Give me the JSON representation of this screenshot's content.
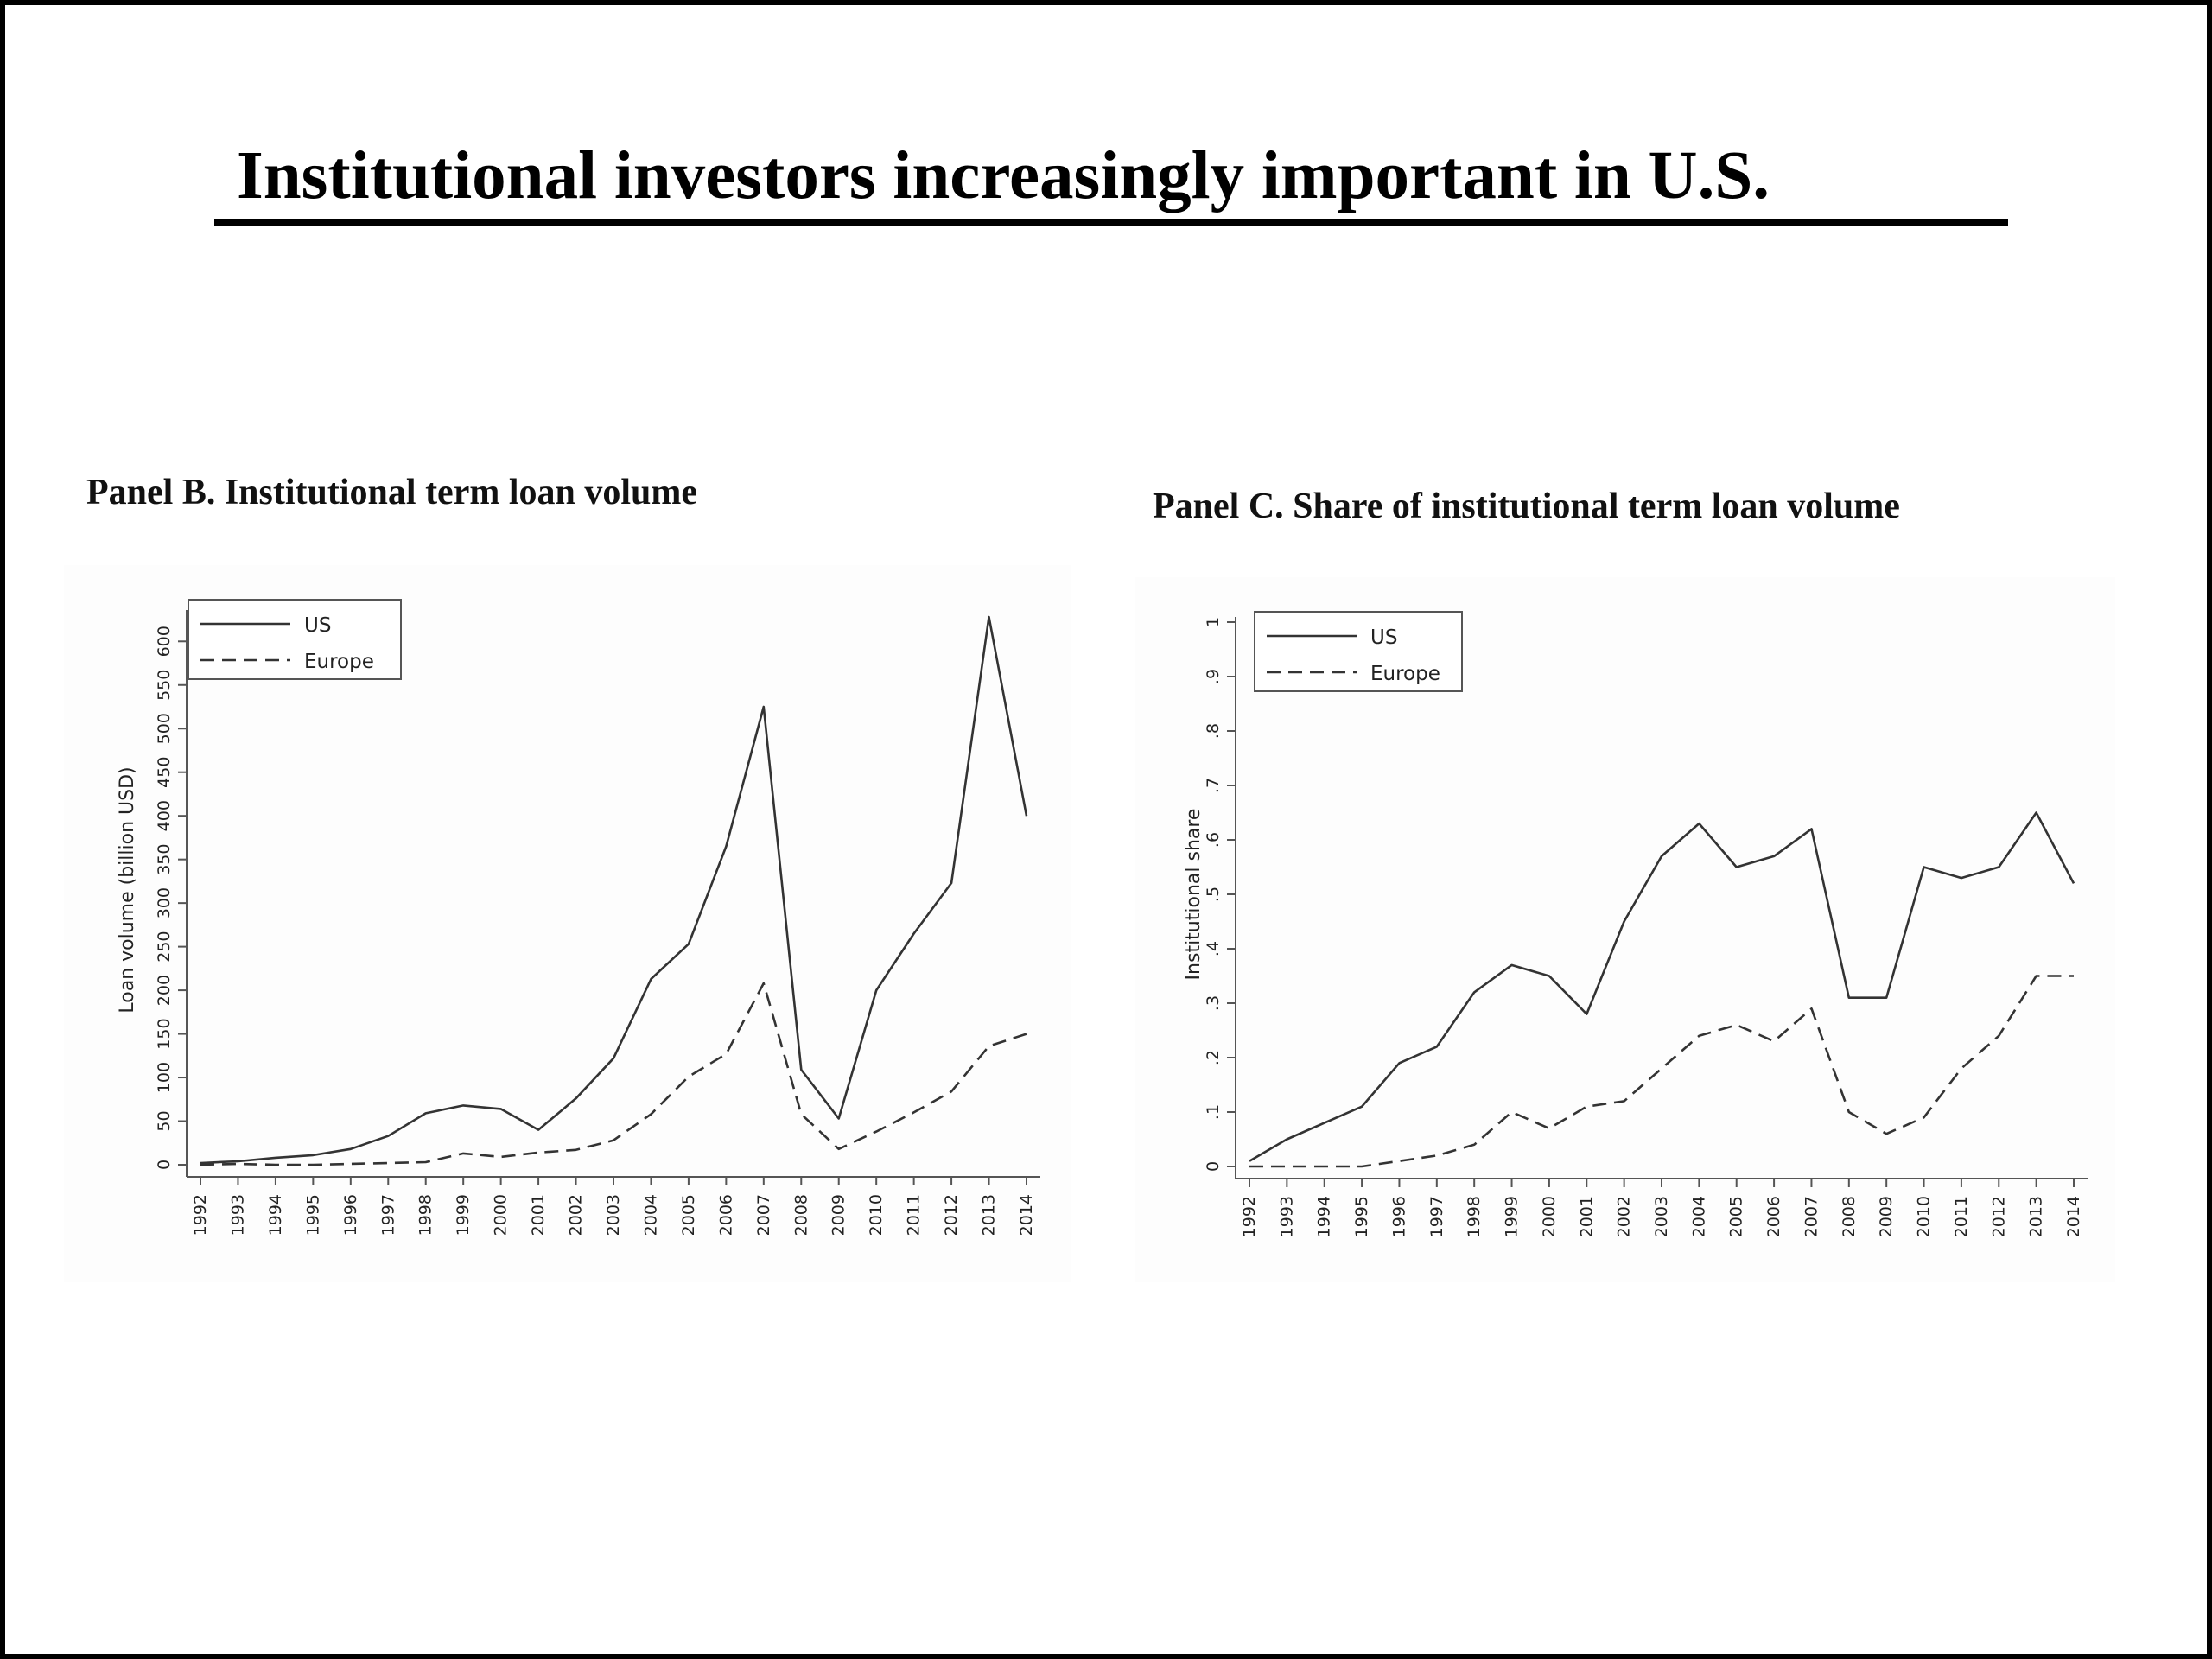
{
  "slide": {
    "title": "Institutional investors increasingly important in U.S."
  },
  "colors": {
    "line": "#333333",
    "axis": "#555555",
    "background": "#ffffff"
  },
  "chart_data": [
    {
      "id": "panel-b",
      "type": "line",
      "title": "Panel B. Institutional term loan volume",
      "xlabel": "",
      "ylabel": "Loan volume (billion USD)",
      "x": [
        1992,
        1993,
        1994,
        1995,
        1996,
        1997,
        1998,
        1999,
        2000,
        2001,
        2002,
        2003,
        2004,
        2005,
        2006,
        2007,
        2008,
        2009,
        2010,
        2011,
        2012,
        2013,
        2014
      ],
      "x_tick_labels": [
        "1992",
        "1993",
        "1994",
        "1995",
        "1996",
        "1997",
        "1998",
        "1999",
        "2000",
        "2001",
        "2002",
        "2003",
        "2004",
        "2005",
        "2006",
        "2007",
        "2008",
        "2009",
        "2010",
        "2011",
        "2012",
        "2013",
        "2014"
      ],
      "y_ticks": [
        0,
        50,
        100,
        150,
        200,
        250,
        300,
        350,
        400,
        450,
        500,
        550,
        600
      ],
      "y_tick_labels": [
        "0",
        "50",
        "100",
        "150",
        "200",
        "250",
        "300",
        "350",
        "400",
        "450",
        "500",
        "550",
        "600"
      ],
      "ylim": [
        0,
        630
      ],
      "grid": false,
      "legend": "top-left",
      "series": [
        {
          "name": "US",
          "style": "solid",
          "values": [
            2,
            4,
            8,
            11,
            18,
            33,
            59,
            68,
            64,
            40,
            76,
            122,
            213,
            253,
            365,
            525,
            109,
            53,
            200,
            265,
            323,
            628,
            400
          ]
        },
        {
          "name": "Europe",
          "style": "dashed",
          "values": [
            0,
            1,
            0,
            0,
            1,
            2,
            3,
            13,
            9,
            14,
            17,
            28,
            58,
            101,
            127,
            208,
            58,
            18,
            38,
            60,
            84,
            136,
            150
          ]
        }
      ]
    },
    {
      "id": "panel-c",
      "type": "line",
      "title": "Panel C. Share of institutional term loan volume",
      "xlabel": "",
      "ylabel": "Institutional share",
      "x": [
        1992,
        1993,
        1994,
        1995,
        1996,
        1997,
        1998,
        1999,
        2000,
        2001,
        2002,
        2003,
        2004,
        2005,
        2006,
        2007,
        2008,
        2009,
        2010,
        2011,
        2012,
        2013,
        2014
      ],
      "x_tick_labels": [
        "1992",
        "1993",
        "1994",
        "1995",
        "1996",
        "1997",
        "1998",
        "1999",
        "2000",
        "2001",
        "2002",
        "2003",
        "2004",
        "2005",
        "2006",
        "2007",
        "2008",
        "2009",
        "2010",
        "2011",
        "2012",
        "2013",
        "2014"
      ],
      "y_ticks": [
        0,
        0.1,
        0.2,
        0.3,
        0.4,
        0.5,
        0.6,
        0.7,
        0.8,
        0.9,
        1
      ],
      "y_tick_labels": [
        "0",
        ".1",
        ".2",
        ".3",
        ".4",
        ".5",
        ".6",
        ".7",
        ".8",
        ".9",
        "1"
      ],
      "ylim": [
        0,
        1
      ],
      "grid": false,
      "legend": "top-left",
      "series": [
        {
          "name": "US",
          "style": "solid",
          "values": [
            0.01,
            0.05,
            0.08,
            0.11,
            0.19,
            0.22,
            0.32,
            0.37,
            0.35,
            0.28,
            0.45,
            0.57,
            0.63,
            0.55,
            0.57,
            0.62,
            0.31,
            0.31,
            0.55,
            0.53,
            0.55,
            0.65,
            0.52
          ]
        },
        {
          "name": "Europe",
          "style": "dashed",
          "values": [
            0,
            0,
            0,
            0,
            0.01,
            0.02,
            0.04,
            0.1,
            0.07,
            0.11,
            0.12,
            0.18,
            0.24,
            0.26,
            0.23,
            0.29,
            0.1,
            0.06,
            0.09,
            0.18,
            0.24,
            0.35,
            0.35
          ]
        }
      ]
    }
  ]
}
